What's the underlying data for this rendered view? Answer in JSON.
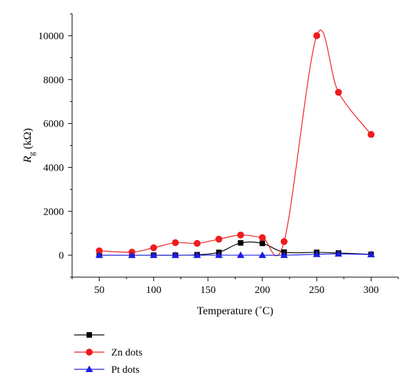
{
  "chart_data": {
    "type": "line",
    "xlabel": "Temperature (˚C)",
    "ylabel_main": "R",
    "ylabel_sub": "g",
    "ylabel_unit": " (kΩ)",
    "xlim": [
      25,
      325
    ],
    "ylim": [
      -1000,
      11000
    ],
    "xticks": [
      50,
      100,
      150,
      200,
      250,
      300
    ],
    "yticks": [
      0,
      2000,
      4000,
      6000,
      8000,
      10000
    ],
    "series": [
      {
        "name": "",
        "color": "#000000",
        "marker": "square",
        "x": [
          50,
          80,
          100,
          120,
          140,
          160,
          180,
          200,
          220,
          250,
          270,
          300
        ],
        "y": [
          0,
          0,
          0,
          0,
          20,
          130,
          560,
          540,
          140,
          130,
          100,
          40
        ]
      },
      {
        "name": "Zn dots",
        "color": "#ee1c1c",
        "marker": "circle",
        "x": [
          50,
          80,
          100,
          120,
          140,
          160,
          180,
          200,
          220,
          250,
          270,
          300
        ],
        "y": [
          200,
          140,
          340,
          570,
          540,
          730,
          920,
          800,
          620,
          10000,
          7420,
          5500
        ]
      },
      {
        "name": "Pt dots",
        "color": "#1c1ce6",
        "marker": "triangle",
        "x": [
          50,
          80,
          100,
          120,
          140,
          160,
          180,
          200,
          220,
          250,
          270,
          300
        ],
        "y": [
          0,
          0,
          0,
          0,
          0,
          0,
          0,
          0,
          0,
          40,
          60,
          30
        ]
      }
    ]
  }
}
